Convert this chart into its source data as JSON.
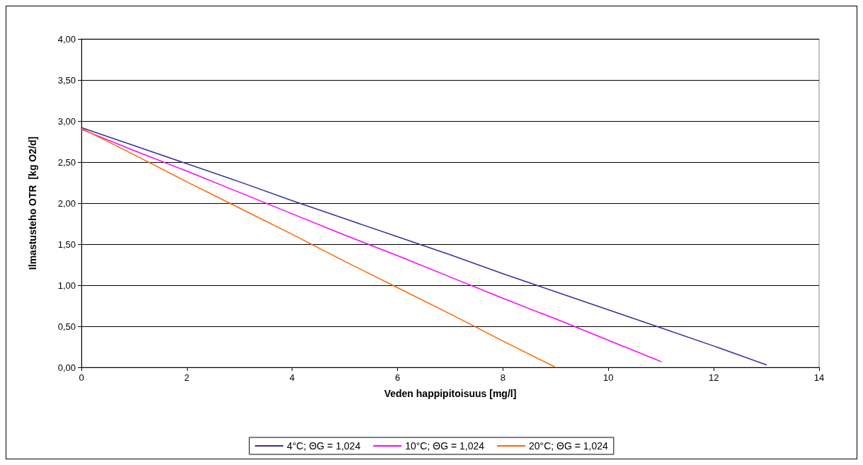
{
  "chart_data": {
    "type": "line",
    "xlabel": "Veden happipitoisuus [mg/l]",
    "ylabel": "Ilmastusteho OTR  [kg O2/d]",
    "x": [
      0,
      1,
      2,
      3,
      4,
      5,
      6,
      7,
      8,
      9,
      10,
      11,
      12,
      13
    ],
    "series": [
      {
        "name": "4°C; ΘG = 1,024",
        "color": "#333399",
        "values": [
          2.92,
          2.7,
          2.48,
          2.26,
          2.03,
          1.81,
          1.59,
          1.37,
          1.14,
          0.92,
          0.7,
          0.48,
          0.26,
          0.03
        ]
      },
      {
        "name": "10°C; ΘG = 1,024",
        "color": "#ff00ff",
        "x": [
          0,
          1,
          2,
          3,
          4,
          5,
          6,
          7,
          8,
          9,
          10,
          11
        ],
        "values": [
          2.9,
          2.64,
          2.39,
          2.13,
          1.87,
          1.61,
          1.36,
          1.1,
          0.84,
          0.59,
          0.33,
          0.07
        ]
      },
      {
        "name": "20°C; ΘG = 1,024",
        "color": "#ff6600",
        "x": [
          0,
          1,
          2,
          3,
          4,
          5,
          6,
          7,
          8,
          9
        ],
        "values": [
          2.91,
          2.59,
          2.26,
          1.94,
          1.62,
          1.29,
          0.97,
          0.65,
          0.32,
          0.0
        ]
      }
    ],
    "xlim": [
      0,
      14
    ],
    "xticks": [
      0,
      2,
      4,
      6,
      8,
      10,
      12,
      14
    ],
    "ylim": [
      0,
      4
    ],
    "yticks": [
      {
        "value": 0,
        "label": "0,00"
      },
      {
        "value": 0.5,
        "label": "0,50"
      },
      {
        "value": 1,
        "label": "1,00"
      },
      {
        "value": 1.5,
        "label": "1,50"
      },
      {
        "value": 2,
        "label": "2,00"
      },
      {
        "value": 2.5,
        "label": "2,50"
      },
      {
        "value": 3,
        "label": "3,00"
      },
      {
        "value": 3.5,
        "label": "3,50"
      },
      {
        "value": 4,
        "label": "4,00"
      }
    ],
    "grid": "y",
    "legend": "bottom",
    "marker": "none",
    "line_style": "solid"
  }
}
